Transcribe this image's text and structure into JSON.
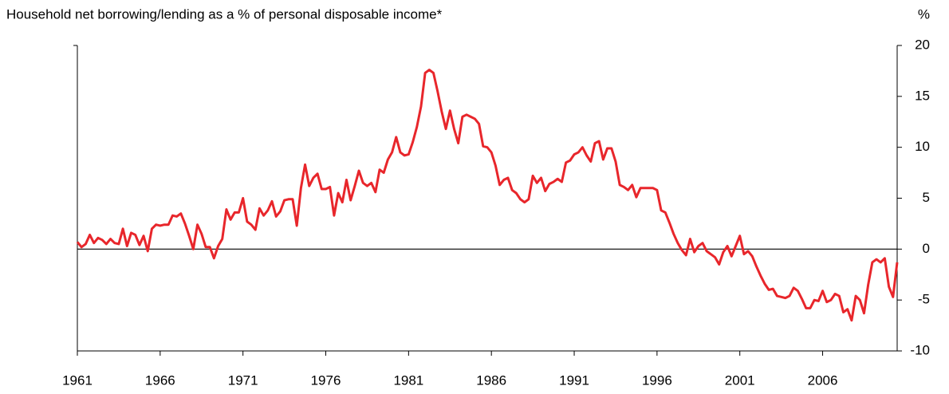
{
  "chart_data": {
    "type": "line",
    "title": "Household net borrowing/lending as a % of personal disposable income*",
    "y_unit": "%",
    "color": "#e8262b",
    "xlim": [
      1961,
      2010.5
    ],
    "xticks": [
      1961,
      1966,
      1971,
      1976,
      1981,
      1986,
      1991,
      1996,
      2001,
      2006
    ],
    "ylim": [
      -10,
      20
    ],
    "yticks": [
      -10,
      -5,
      0,
      5,
      10,
      15,
      20
    ],
    "x": [
      1961,
      1961.25,
      1961.5,
      1961.75,
      1962,
      1962.25,
      1962.5,
      1962.75,
      1963,
      1963.25,
      1963.5,
      1963.75,
      1964,
      1964.25,
      1964.5,
      1964.75,
      1965,
      1965.25,
      1965.5,
      1965.75,
      1966,
      1966.25,
      1966.5,
      1966.75,
      1967,
      1967.25,
      1967.5,
      1967.75,
      1968,
      1968.25,
      1968.5,
      1968.75,
      1969,
      1969.25,
      1969.5,
      1969.75,
      1970,
      1970.25,
      1970.5,
      1970.75,
      1971,
      1971.25,
      1971.5,
      1971.75,
      1972,
      1972.25,
      1972.5,
      1972.75,
      1973,
      1973.25,
      1973.5,
      1973.75,
      1974,
      1974.25,
      1974.5,
      1974.75,
      1975,
      1975.25,
      1975.5,
      1975.75,
      1976,
      1976.25,
      1976.5,
      1976.75,
      1977,
      1977.25,
      1977.5,
      1977.75,
      1978,
      1978.25,
      1978.5,
      1978.75,
      1979,
      1979.25,
      1979.5,
      1979.75,
      1980,
      1980.25,
      1980.5,
      1980.75,
      1981,
      1981.25,
      1981.5,
      1981.75,
      1982,
      1982.25,
      1982.5,
      1982.75,
      1983,
      1983.25,
      1983.5,
      1983.75,
      1984,
      1984.25,
      1984.5,
      1984.75,
      1985,
      1985.25,
      1985.5,
      1985.75,
      1986,
      1986.25,
      1986.5,
      1986.75,
      1987,
      1987.25,
      1987.5,
      1987.75,
      1988,
      1988.25,
      1988.5,
      1988.75,
      1989,
      1989.25,
      1989.5,
      1989.75,
      1990,
      1990.25,
      1990.5,
      1990.75,
      1991,
      1991.25,
      1991.5,
      1991.75,
      1992,
      1992.25,
      1992.5,
      1992.75,
      1993,
      1993.25,
      1993.5,
      1993.75,
      1994,
      1994.25,
      1994.5,
      1994.75,
      1995,
      1995.25,
      1995.5,
      1995.75,
      1996,
      1996.25,
      1996.5,
      1996.75,
      1997,
      1997.25,
      1997.5,
      1997.75,
      1998,
      1998.25,
      1998.5,
      1998.75,
      1999,
      1999.25,
      1999.5,
      1999.75,
      2000,
      2000.25,
      2000.5,
      2000.75,
      2001,
      2001.25,
      2001.5,
      2001.75,
      2002,
      2002.25,
      2002.5,
      2002.75,
      2003,
      2003.25,
      2003.5,
      2003.75,
      2004,
      2004.25,
      2004.5,
      2004.75,
      2005,
      2005.25,
      2005.5,
      2005.75,
      2006,
      2006.25,
      2006.5,
      2006.75,
      2007,
      2007.25,
      2007.5,
      2007.75,
      2008,
      2008.25,
      2008.5,
      2008.75,
      2009,
      2009.25,
      2009.5,
      2009.75,
      2010,
      2010.25,
      2010.5
    ],
    "values": [
      0.7,
      0.2,
      0.5,
      1.4,
      0.6,
      1.1,
      0.9,
      0.5,
      1.0,
      0.6,
      0.5,
      2.0,
      0.3,
      1.6,
      1.4,
      0.4,
      1.3,
      -0.2,
      2.0,
      2.4,
      2.3,
      2.4,
      2.4,
      3.3,
      3.2,
      3.5,
      2.5,
      1.3,
      0.0,
      2.4,
      1.5,
      0.2,
      0.2,
      -0.9,
      0.3,
      1.0,
      3.9,
      2.9,
      3.6,
      3.6,
      5.0,
      2.7,
      2.4,
      1.9,
      4.0,
      3.3,
      3.8,
      4.7,
      3.2,
      3.7,
      4.8,
      4.9,
      4.9,
      2.3,
      6.0,
      8.3,
      6.2,
      7.0,
      7.4,
      5.9,
      5.9,
      6.1,
      3.3,
      5.5,
      4.6,
      6.8,
      4.8,
      6.2,
      7.7,
      6.5,
      6.2,
      6.5,
      5.6,
      7.8,
      7.5,
      8.8,
      9.5,
      11.0,
      9.5,
      9.2,
      9.3,
      10.5,
      12.0,
      14.0,
      17.3,
      17.6,
      17.3,
      15.5,
      13.5,
      11.8,
      13.6,
      11.8,
      10.4,
      13.0,
      13.2,
      13.0,
      12.8,
      12.3,
      10.1,
      10.0,
      9.5,
      8.2,
      6.3,
      6.8,
      7.0,
      5.8,
      5.5,
      4.9,
      4.6,
      4.9,
      7.2,
      6.5,
      7.0,
      5.7,
      6.4,
      6.6,
      6.9,
      6.6,
      8.5,
      8.7,
      9.3,
      9.5,
      10.0,
      9.2,
      8.6,
      10.4,
      10.6,
      8.8,
      9.9,
      9.9,
      8.6,
      6.3,
      6.1,
      5.8,
      6.3,
      5.1,
      6.0,
      6.0,
      6.0,
      6.0,
      5.8,
      3.8,
      3.6,
      2.6,
      1.5,
      0.6,
      -0.1,
      -0.6,
      1.0,
      -0.3,
      0.3,
      0.6,
      -0.2,
      -0.5,
      -0.8,
      -1.5,
      -0.3,
      0.3,
      -0.7,
      0.3,
      1.3,
      -0.5,
      -0.2,
      -0.7,
      -1.7,
      -2.6,
      -3.4,
      -4.0,
      -3.9,
      -4.6,
      -4.7,
      -4.8,
      -4.6,
      -3.8,
      -4.1,
      -4.9,
      -5.8,
      -5.8,
      -5.0,
      -5.1,
      -4.1,
      -5.2,
      -5.0,
      -4.4,
      -4.6,
      -6.2,
      -5.9,
      -7.0,
      -4.6,
      -5.0,
      -6.3,
      -3.5,
      -1.3,
      -1.0,
      -1.3,
      -0.9,
      -3.7,
      -4.7,
      -1.3
    ]
  }
}
